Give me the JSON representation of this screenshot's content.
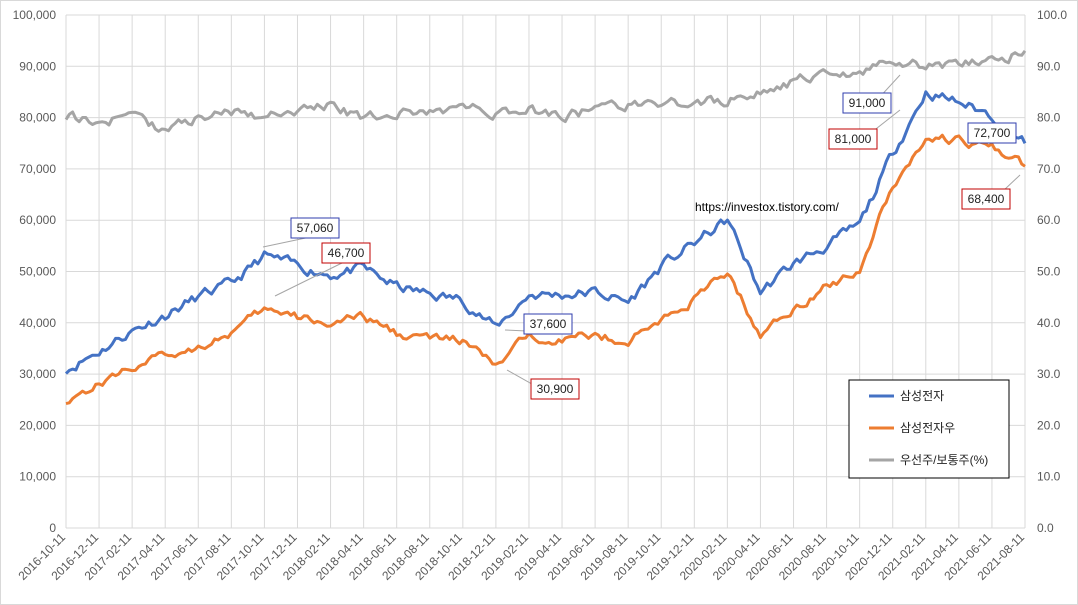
{
  "chart_data": {
    "type": "line",
    "title": "",
    "xlabel": "",
    "ylabel": "",
    "y2label": "",
    "ylim": [
      0,
      100000
    ],
    "y2lim": [
      0,
      100
    ],
    "y_ticks": [
      "0",
      "10,000",
      "20,000",
      "30,000",
      "40,000",
      "50,000",
      "60,000",
      "70,000",
      "80,000",
      "90,000",
      "100,000"
    ],
    "y2_ticks": [
      "0.0",
      "10.0",
      "20.0",
      "30.0",
      "40.0",
      "50.0",
      "60.0",
      "70.0",
      "80.0",
      "90.0",
      "100.0"
    ],
    "categories": [
      "2016-10-11",
      "2016-12-11",
      "2017-02-11",
      "2017-04-11",
      "2017-06-11",
      "2017-08-11",
      "2017-10-11",
      "2017-12-11",
      "2018-02-11",
      "2018-04-11",
      "2018-06-11",
      "2018-08-11",
      "2018-10-11",
      "2018-12-11",
      "2019-02-11",
      "2019-04-11",
      "2019-06-11",
      "2019-08-11",
      "2019-10-11",
      "2019-12-11",
      "2020-02-11",
      "2020-04-11",
      "2020-06-11",
      "2020-08-11",
      "2020-10-11",
      "2020-12-11",
      "2021-02-11",
      "2021-04-11",
      "2021-06-11",
      "2021-08-11"
    ],
    "series": [
      {
        "name": "삼성전자",
        "axis": "left",
        "color": "#4472C4",
        "values": [
          31000,
          34500,
          38500,
          41500,
          45000,
          47500,
          53000,
          51000,
          49500,
          50500,
          47000,
          45500,
          44500,
          39000,
          45500,
          45500,
          46000,
          44000,
          51000,
          55500,
          60000,
          46000,
          51500,
          55000,
          59000,
          73000,
          85000,
          83000,
          80500,
          75000
        ]
      },
      {
        "name": "삼성전자우",
        "axis": "left",
        "color": "#ED7D31",
        "values": [
          25000,
          28000,
          31500,
          33500,
          35500,
          38000,
          42500,
          41000,
          40000,
          41000,
          38000,
          37000,
          36500,
          31500,
          37500,
          37000,
          37500,
          36500,
          40500,
          44500,
          50000,
          37500,
          43000,
          47000,
          50500,
          67000,
          76000,
          75500,
          74000,
          70500
        ]
      },
      {
        "name": "우선주/보통주(%)",
        "axis": "right",
        "color": "#A5A5A5",
        "values": [
          80.5,
          79.0,
          80.5,
          77.5,
          80.0,
          81.0,
          80.5,
          81.5,
          82.5,
          79.5,
          81.0,
          81.0,
          82.0,
          81.0,
          81.5,
          80.5,
          81.5,
          82.5,
          82.0,
          83.0,
          83.5,
          85.0,
          87.0,
          88.0,
          88.5,
          91.5,
          90.0,
          90.5,
          91.0,
          93.0
        ]
      }
    ],
    "annotations": [
      {
        "label": "57,060",
        "series": "삼성전자",
        "color": "#2F3DAD"
      },
      {
        "label": "46,700",
        "series": "삼성전자우",
        "color": "#C00000"
      },
      {
        "label": "37,600",
        "series": "삼성전자",
        "color": "#2F3DAD"
      },
      {
        "label": "30,900",
        "series": "삼성전자우",
        "color": "#C00000"
      },
      {
        "label": "91,000",
        "series": "삼성전자",
        "color": "#2F3DAD"
      },
      {
        "label": "81,000",
        "series": "삼성전자우",
        "color": "#C00000"
      },
      {
        "label": "72,700",
        "series": "삼성전자",
        "color": "#2F3DAD"
      },
      {
        "label": "68,400",
        "series": "삼성전자우",
        "color": "#C00000"
      }
    ],
    "watermark": "https://investox.tistory.com/",
    "legend_position": "bottom-right",
    "grid": true
  }
}
